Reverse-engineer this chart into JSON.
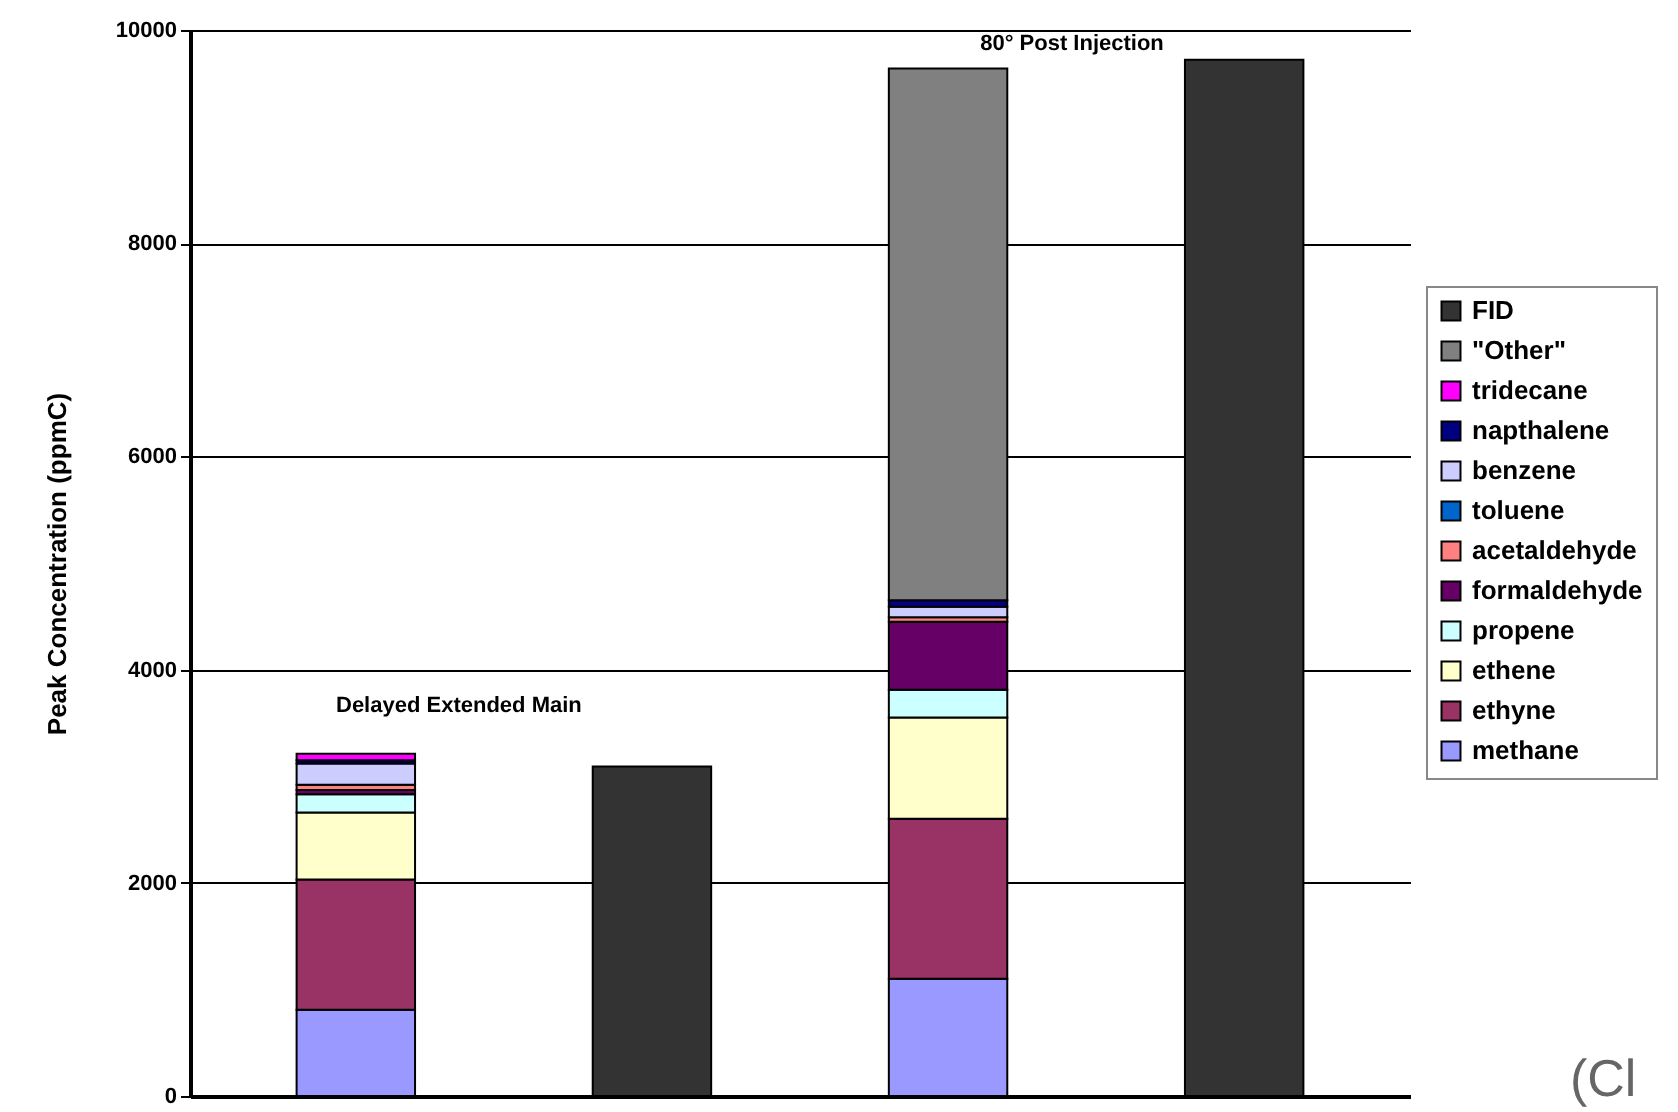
{
  "chart_data": {
    "type": "bar",
    "stacked": true,
    "ylabel": "Peak Concentration (ppmC)",
    "categories": [
      null,
      null,
      null,
      null
    ],
    "ylim": [
      0,
      10000
    ],
    "yticks": [
      0,
      2000,
      4000,
      6000,
      8000,
      10000
    ],
    "grid": "y",
    "legend": "right",
    "tick_labels": "y",
    "annotations": [
      "Delayed Extended Main",
      "80° Post Injection",
      "(Cl"
    ],
    "series": [
      {
        "name": "methane",
        "color": "#9999ff",
        "values": [
          810,
          null,
          1100,
          null
        ]
      },
      {
        "name": "ethyne",
        "color": "#993366",
        "values": [
          1220,
          null,
          1500,
          null
        ]
      },
      {
        "name": "ethene",
        "color": "#ffffcc",
        "values": [
          630,
          null,
          950,
          null
        ]
      },
      {
        "name": "propene",
        "color": "#ccffff",
        "values": [
          170,
          null,
          260,
          null
        ]
      },
      {
        "name": "formaldehyde",
        "color": "#660066",
        "values": [
          40,
          null,
          640,
          null
        ]
      },
      {
        "name": "acetaldehyde",
        "color": "#ff8080",
        "values": [
          50,
          null,
          40,
          null
        ]
      },
      {
        "name": "toluene",
        "color": "#0066cc",
        "values": [
          null,
          null,
          null,
          null
        ]
      },
      {
        "name": "benzene",
        "color": "#ccccff",
        "values": [
          200,
          null,
          100,
          null
        ]
      },
      {
        "name": "napthalene",
        "color": "#000080",
        "values": [
          30,
          null,
          60,
          null
        ]
      },
      {
        "name": "tridecane",
        "color": "#ff00ff",
        "values": [
          60,
          null,
          null,
          null
        ]
      },
      {
        "name": "\"Other\"",
        "color": "#808080",
        "values": [
          null,
          null,
          4990,
          null
        ]
      },
      {
        "name": "FID",
        "color": "#333333",
        "values": [
          null,
          3090,
          null,
          9720
        ]
      }
    ]
  }
}
